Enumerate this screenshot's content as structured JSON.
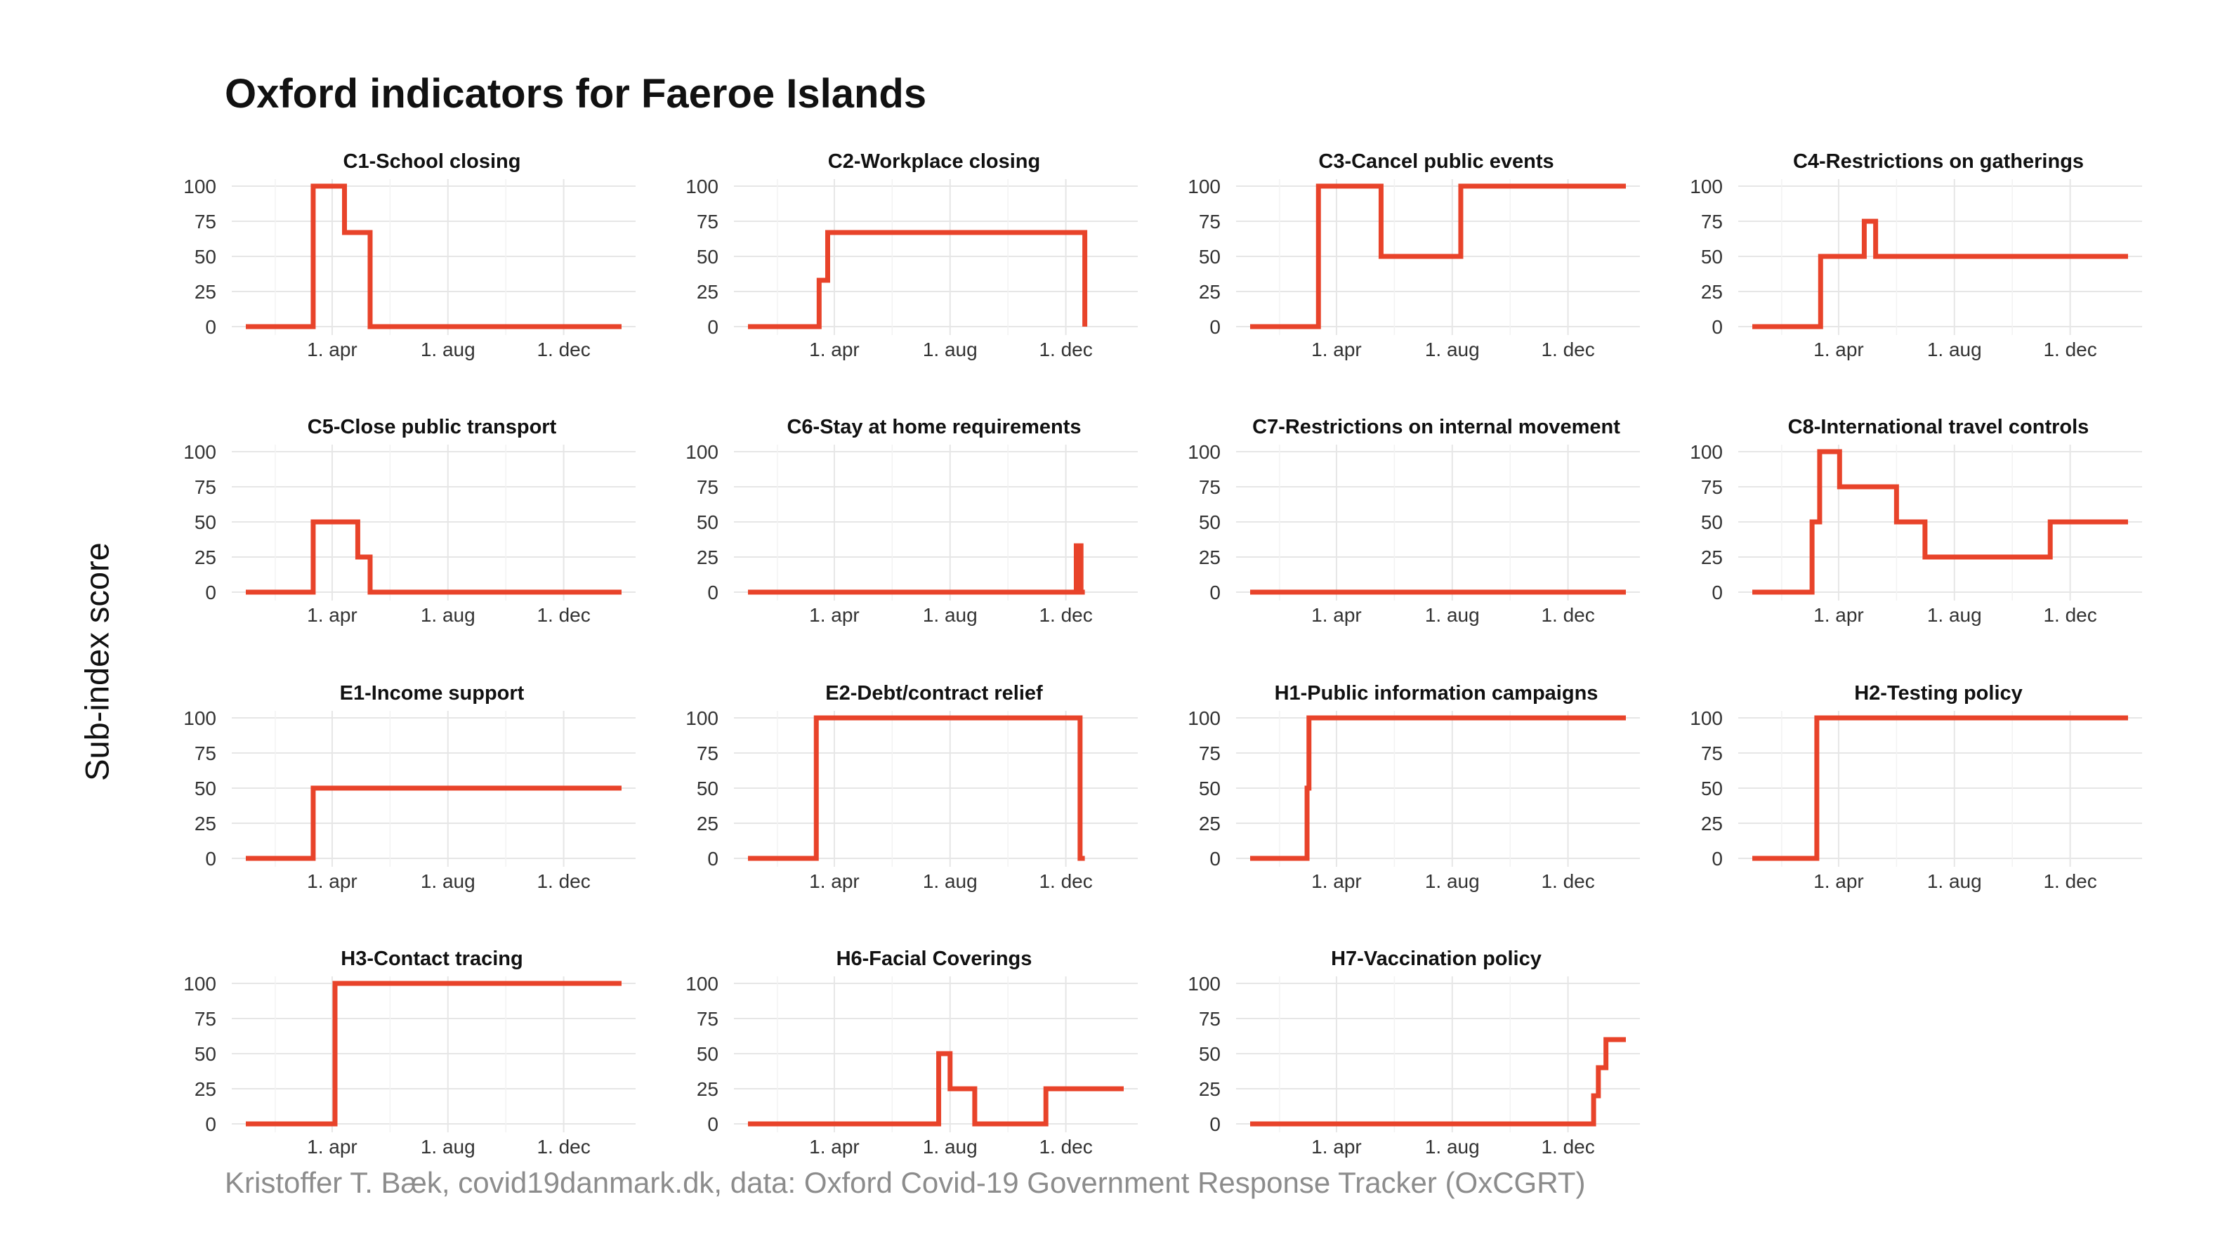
{
  "title": "Oxford indicators for Faeroe Islands",
  "y_axis_label": "Sub-index score",
  "caption": "Kristoffer T. Bæk, covid19danmark.dk, data: Oxford Covid-19 Government Response Tracker (OxCGRT)",
  "colors": {
    "line": "#e8432a",
    "grid": "#e6e6e6",
    "text": "#111111",
    "tick": "#333333",
    "caption": "#8c8c8c"
  },
  "chart_data": [
    {
      "type": "line",
      "title": "C1-School closing",
      "x_ticks": [
        "1. apr",
        "1. aug",
        "1. dec"
      ],
      "y_ticks": [
        0,
        25,
        50,
        75,
        100
      ],
      "ylim": [
        0,
        100
      ],
      "x": [
        "2020-01-01",
        "2020-03-12",
        "2020-04-14",
        "2020-05-11",
        "2021-01-31"
      ],
      "y": [
        0,
        100,
        67,
        0,
        0
      ]
    },
    {
      "type": "line",
      "title": "C2-Workplace closing",
      "x_ticks": [
        "1. apr",
        "1. aug",
        "1. dec"
      ],
      "y_ticks": [
        0,
        25,
        50,
        75,
        100
      ],
      "ylim": [
        0,
        100
      ],
      "x": [
        "2020-01-01",
        "2020-03-16",
        "2020-03-25",
        "2020-12-16",
        "2020-12-21"
      ],
      "y": [
        0,
        33,
        67,
        67,
        0
      ]
    },
    {
      "type": "line",
      "title": "C3-Cancel public events",
      "x_ticks": [
        "1. apr",
        "1. aug",
        "1. dec"
      ],
      "y_ticks": [
        0,
        25,
        50,
        75,
        100
      ],
      "ylim": [
        0,
        100
      ],
      "x": [
        "2020-01-01",
        "2020-03-13",
        "2020-05-18",
        "2020-08-10",
        "2021-01-31"
      ],
      "y": [
        0,
        100,
        50,
        100,
        100
      ]
    },
    {
      "type": "line",
      "title": "C4-Restrictions on gatherings",
      "x_ticks": [
        "1. apr",
        "1. aug",
        "1. dec"
      ],
      "y_ticks": [
        0,
        25,
        50,
        75,
        100
      ],
      "ylim": [
        0,
        100
      ],
      "x": [
        "2020-01-01",
        "2020-03-13",
        "2020-04-28",
        "2020-05-10",
        "2021-01-31"
      ],
      "y": [
        0,
        50,
        75,
        50,
        50
      ]
    },
    {
      "type": "line",
      "title": "C5-Close public transport",
      "x_ticks": [
        "1. apr",
        "1. aug",
        "1. dec"
      ],
      "y_ticks": [
        0,
        25,
        50,
        75,
        100
      ],
      "ylim": [
        0,
        100
      ],
      "x": [
        "2020-01-01",
        "2020-03-12",
        "2020-04-28",
        "2020-05-11",
        "2021-01-31"
      ],
      "y": [
        0,
        50,
        25,
        0,
        0
      ]
    },
    {
      "type": "line",
      "title": "C6-Stay at home requirements",
      "x_ticks": [
        "1. apr",
        "1. aug",
        "1. dec"
      ],
      "y_ticks": [
        0,
        25,
        50,
        75,
        100
      ],
      "ylim": [
        0,
        100
      ],
      "x": [
        "2020-01-01",
        "2020-12-12",
        "2020-12-17",
        "2020-12-21"
      ],
      "y": [
        0,
        33,
        0,
        0
      ]
    },
    {
      "type": "line",
      "title": "C7-Restrictions on internal movement",
      "x_ticks": [
        "1. apr",
        "1. aug",
        "1. dec"
      ],
      "y_ticks": [
        0,
        25,
        50,
        75,
        100
      ],
      "ylim": [
        0,
        100
      ],
      "x": [
        "2020-01-01",
        "2021-01-31"
      ],
      "y": [
        0,
        0
      ]
    },
    {
      "type": "line",
      "title": "C8-International travel controls",
      "x_ticks": [
        "1. apr",
        "1. aug",
        "1. dec"
      ],
      "y_ticks": [
        0,
        25,
        50,
        75,
        100
      ],
      "ylim": [
        0,
        100
      ],
      "x": [
        "2020-01-01",
        "2020-03-04",
        "2020-03-12",
        "2020-04-02",
        "2020-06-01",
        "2020-07-01",
        "2020-11-10",
        "2021-01-31"
      ],
      "y": [
        0,
        50,
        100,
        75,
        50,
        25,
        50,
        50
      ]
    },
    {
      "type": "line",
      "title": "E1-Income support",
      "x_ticks": [
        "1. apr",
        "1. aug",
        "1. dec"
      ],
      "y_ticks": [
        0,
        25,
        50,
        75,
        100
      ],
      "ylim": [
        0,
        100
      ],
      "x": [
        "2020-01-01",
        "2020-03-12",
        "2021-01-31"
      ],
      "y": [
        0,
        50,
        50
      ]
    },
    {
      "type": "line",
      "title": "E2-Debt/contract relief",
      "x_ticks": [
        "1. apr",
        "1. aug",
        "1. dec"
      ],
      "y_ticks": [
        0,
        25,
        50,
        75,
        100
      ],
      "ylim": [
        0,
        100
      ],
      "x": [
        "2020-01-01",
        "2020-03-13",
        "2020-12-16",
        "2020-12-21"
      ],
      "y": [
        0,
        100,
        0,
        0
      ]
    },
    {
      "type": "line",
      "title": "H1-Public information campaigns",
      "x_ticks": [
        "1. apr",
        "1. aug",
        "1. dec"
      ],
      "y_ticks": [
        0,
        25,
        50,
        75,
        100
      ],
      "ylim": [
        0,
        100
      ],
      "x": [
        "2020-01-01",
        "2020-03-01",
        "2020-03-03",
        "2021-01-31"
      ],
      "y": [
        0,
        50,
        100,
        100
      ]
    },
    {
      "type": "line",
      "title": "H2-Testing policy",
      "x_ticks": [
        "1. apr",
        "1. aug",
        "1. dec"
      ],
      "y_ticks": [
        0,
        25,
        50,
        75,
        100
      ],
      "ylim": [
        0,
        100
      ],
      "x": [
        "2020-01-01",
        "2020-03-09",
        "2021-01-31"
      ],
      "y": [
        0,
        100,
        100
      ]
    },
    {
      "type": "line",
      "title": "H3-Contact tracing",
      "x_ticks": [
        "1. apr",
        "1. aug",
        "1. dec"
      ],
      "y_ticks": [
        0,
        25,
        50,
        75,
        100
      ],
      "ylim": [
        0,
        100
      ],
      "x": [
        "2020-01-01",
        "2020-04-04",
        "2021-01-31"
      ],
      "y": [
        0,
        100,
        100
      ]
    },
    {
      "type": "line",
      "title": "H6-Facial Coverings",
      "x_ticks": [
        "1. apr",
        "1. aug",
        "1. dec"
      ],
      "y_ticks": [
        0,
        25,
        50,
        75,
        100
      ],
      "ylim": [
        0,
        100
      ],
      "x": [
        "2020-01-01",
        "2020-07-20",
        "2020-08-01",
        "2020-08-27",
        "2020-11-10",
        "2021-01-31"
      ],
      "y": [
        0,
        50,
        25,
        0,
        25,
        25
      ]
    },
    {
      "type": "line",
      "title": "H7-Vaccination policy",
      "x_ticks": [
        "1. apr",
        "1. aug",
        "1. dec"
      ],
      "y_ticks": [
        0,
        25,
        50,
        75,
        100
      ],
      "ylim": [
        0,
        100
      ],
      "x": [
        "2020-01-01",
        "2020-12-28",
        "2021-01-02",
        "2021-01-10",
        "2021-01-31"
      ],
      "y": [
        0,
        20,
        40,
        60,
        60
      ]
    }
  ]
}
